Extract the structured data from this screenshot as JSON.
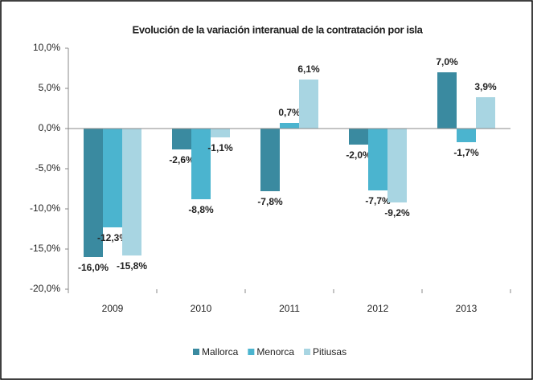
{
  "chart_data": {
    "type": "bar",
    "title": "Evolución de la variación interanual de la contratación por isla",
    "categories": [
      "2009",
      "2010",
      "2011",
      "2012",
      "2013"
    ],
    "series": [
      {
        "name": "Mallorca",
        "color": "#3a8aa0",
        "values": [
          -16.0,
          -2.6,
          -7.8,
          -2.0,
          7.0
        ],
        "value_labels": [
          "-16,0%",
          "-2,6%",
          "-7,8%",
          "-2,0%",
          "7,0%"
        ]
      },
      {
        "name": "Menorca",
        "color": "#4bb4cf",
        "values": [
          -12.3,
          -8.8,
          0.7,
          -7.7,
          -1.7
        ],
        "value_labels": [
          "-12,3%",
          "-8,8%",
          "0,7%",
          "-7,7%",
          "-1,7%"
        ]
      },
      {
        "name": "Pitiusas",
        "color": "#a8d5e2",
        "values": [
          -15.8,
          -1.1,
          6.1,
          -9.2,
          3.9
        ],
        "value_labels": [
          "-15,8%",
          "-1,1%",
          "6,1%",
          "-9,2%",
          "3,9%"
        ]
      }
    ],
    "ylim": [
      -20,
      10
    ],
    "yticks": [
      {
        "value": -20,
        "label": "-20,0%"
      },
      {
        "value": -15,
        "label": "-15,0%"
      },
      {
        "value": -10,
        "label": "-10,0%"
      },
      {
        "value": -5,
        "label": "-5,0%"
      },
      {
        "value": 0,
        "label": "0,0%"
      },
      {
        "value": 5,
        "label": "5,0%"
      },
      {
        "value": 10,
        "label": "10,0%"
      }
    ],
    "grid": false,
    "legend": "bottom"
  }
}
